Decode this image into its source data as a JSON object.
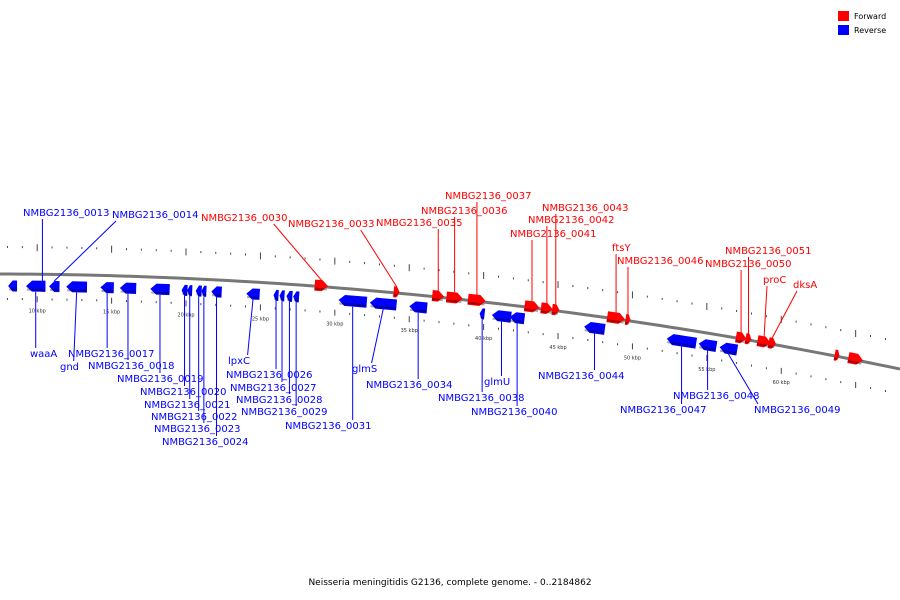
{
  "caption": "Neisseria meningitidis G2136, complete genome. - 0..2184862",
  "legend": [
    {
      "label": "Forward",
      "color": "#ff0000"
    },
    {
      "label": "Reverse",
      "color": "#0000ff"
    }
  ],
  "colors": {
    "forward": "#ff0000",
    "reverse": "#0000ff",
    "backbone": "#777777"
  },
  "scale_labels": [
    "10 kbp",
    "15 kbp",
    "20 kbp",
    "25 kbp",
    "30 kbp",
    "35 kbp",
    "40 kbp",
    "45 kbp",
    "50 kbp",
    "55 kbp",
    "60 kbp"
  ],
  "genes": [
    {
      "name": "",
      "strand": "-",
      "kb": 8.05,
      "len": 0.6
    },
    {
      "name": "waaA",
      "strand": "-",
      "kb": 9.25,
      "len": 1.3
    },
    {
      "name": "NMBG2136_0013",
      "strand": "-",
      "kb": 10.15,
      "len": 0.4
    },
    {
      "name": "NMBG2136_0014",
      "strand": "-",
      "kb": 10.8,
      "len": 0.7
    },
    {
      "name": "gnd",
      "strand": "-",
      "kb": 11.95,
      "len": 1.4
    },
    {
      "name": "NMBG2136_0017",
      "strand": "-",
      "kb": 14.25,
      "len": 0.9
    },
    {
      "name": "NMBG2136_0018",
      "strand": "-",
      "kb": 15.55,
      "len": 1.1
    },
    {
      "name": "NMBG2136_0019",
      "strand": "-",
      "kb": 17.6,
      "len": 1.3
    },
    {
      "name": "NMBG2136_0020",
      "strand": "-",
      "kb": 19.7,
      "len": 0.4
    },
    {
      "name": "NMBG2136_0021",
      "strand": "-",
      "kb": 20.1,
      "len": 0.3
    },
    {
      "name": "NMBG2136_0022",
      "strand": "-",
      "kb": 20.65,
      "len": 0.4
    },
    {
      "name": "NMBG2136_0023",
      "strand": "-",
      "kb": 21.05,
      "len": 0.3
    },
    {
      "name": "NMBG2136_0024",
      "strand": "-",
      "kb": 21.7,
      "len": 0.7
    },
    {
      "name": "lpxC",
      "strand": "-",
      "kb": 24.05,
      "len": 0.9
    },
    {
      "name": "NMBG2136_0026",
      "strand": "-",
      "kb": 25.9,
      "len": 0.3
    },
    {
      "name": "NMBG2136_0027",
      "strand": "-",
      "kb": 26.3,
      "len": 0.3
    },
    {
      "name": "NMBG2136_0028",
      "strand": "-",
      "kb": 26.75,
      "len": 0.4
    },
    {
      "name": "NMBG2136_0029",
      "strand": "-",
      "kb": 27.2,
      "len": 0.4
    },
    {
      "name": "NMBG2136_0030",
      "strand": "+",
      "kb": 28.65,
      "len": 0.9
    },
    {
      "name": "NMBG2136_0031",
      "strand": "-",
      "kb": 30.25,
      "len": 1.9
    },
    {
      "name": "glmS",
      "strand": "-",
      "kb": 32.35,
      "len": 1.8
    },
    {
      "name": "NMBG2136_0033",
      "strand": "+",
      "kb": 33.95,
      "len": 0.4
    },
    {
      "name": "NMBG2136_0034",
      "strand": "-",
      "kb": 35.0,
      "len": 1.2
    },
    {
      "name": "NMBG2136_0035",
      "strand": "+",
      "kb": 36.55,
      "len": 0.8
    },
    {
      "name": "NMBG2136_0036",
      "strand": "+",
      "kb": 37.5,
      "len": 1.1
    },
    {
      "name": "NMBG2136_0037",
      "strand": "+",
      "kb": 38.95,
      "len": 1.2
    },
    {
      "name": "NMBG2136_0038",
      "strand": "-",
      "kb": 39.75,
      "len": 0.3
    },
    {
      "name": "glmU",
      "strand": "-",
      "kb": 40.55,
      "len": 1.3
    },
    {
      "name": "NMBG2136_0040",
      "strand": "-",
      "kb": 41.75,
      "len": 1.0
    },
    {
      "name": "NMBG2136_0041",
      "strand": "+",
      "kb": 42.75,
      "len": 1.0
    },
    {
      "name": "NMBG2136_0042",
      "strand": "+",
      "kb": 43.85,
      "len": 0.8
    },
    {
      "name": "NMBG2136_0043",
      "strand": "+",
      "kb": 44.6,
      "len": 0.5
    },
    {
      "name": "NMBG2136_0044",
      "strand": "-",
      "kb": 46.75,
      "len": 1.4
    },
    {
      "name": "ftsY",
      "strand": "+",
      "kb": 48.3,
      "len": 1.2
    },
    {
      "name": "NMBG2136_0046",
      "strand": "+",
      "kb": 49.55,
      "len": 0.3
    },
    {
      "name": "NMBG2136_0047",
      "strand": "-",
      "kb": 52.3,
      "len": 2.0
    },
    {
      "name": "NMBG2136_0048",
      "strand": "-",
      "kb": 54.45,
      "len": 1.2
    },
    {
      "name": "NMBG2136_0049",
      "strand": "-",
      "kb": 55.85,
      "len": 1.2
    },
    {
      "name": "NMBG2136_0050",
      "strand": "+",
      "kb": 56.95,
      "len": 0.7
    },
    {
      "name": "NMBG2136_0051",
      "strand": "+",
      "kb": 57.6,
      "len": 0.4
    },
    {
      "name": "proC",
      "strand": "+",
      "kb": 58.4,
      "len": 0.9
    },
    {
      "name": "dksA",
      "strand": "+",
      "kb": 59.15,
      "len": 0.5
    },
    {
      "name": "",
      "strand": "+",
      "kb": 63.6,
      "len": 0.3
    },
    {
      "name": "",
      "strand": "+",
      "kb": 64.5,
      "len": 1.0
    }
  ]
}
